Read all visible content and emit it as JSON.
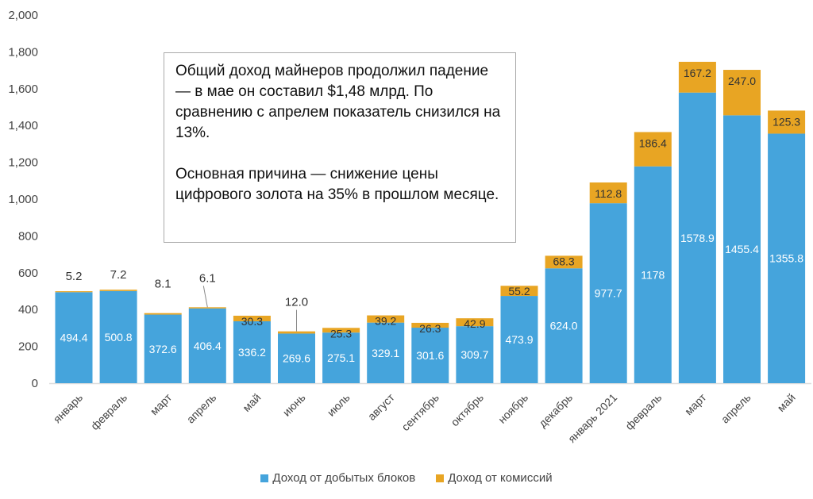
{
  "chart_data": {
    "type": "bar",
    "stacked": true,
    "categories": [
      "январь",
      "февраль",
      "март",
      "апрель",
      "май",
      "июнь",
      "июль",
      "август",
      "сентябрь",
      "октябрь",
      "ноябрь",
      "декабрь",
      "январь 2021",
      "февраль",
      "март",
      "апрель",
      "май"
    ],
    "series": [
      {
        "name": "Доход от добытых блоков",
        "color": "#45a4dc",
        "values": [
          494.4,
          500.8,
          372.6,
          406.4,
          336.2,
          269.6,
          275.1,
          329.1,
          301.6,
          309.7,
          473.9,
          624.0,
          977.7,
          1178,
          1578.9,
          1455.4,
          1355.8
        ],
        "labels": [
          "494.4",
          "500.8",
          "372.6",
          "406.4",
          "336.2",
          "269.6",
          "275.1",
          "329.1",
          "301.6",
          "309.7",
          "473.9",
          "624.0",
          "977.7",
          "1178",
          "1578.9",
          "1455.4",
          "1355.8"
        ]
      },
      {
        "name": "Доход от комиссий",
        "color": "#e8a523",
        "values": [
          5.2,
          7.2,
          8.1,
          6.1,
          30.3,
          12.0,
          25.3,
          39.2,
          26.3,
          42.9,
          55.2,
          68.3,
          112.8,
          186.4,
          167.2,
          247.0,
          125.3
        ],
        "labels": [
          "5.2",
          "7.2",
          "8.1",
          "6.1",
          "30.3",
          "12.0",
          "25.3",
          "39.2",
          "26.3",
          "42.9",
          "55.2",
          "68.3",
          "112.8",
          "186.4",
          "167.2",
          "247.0",
          "125.3"
        ]
      }
    ],
    "ylim": [
      0,
      2000
    ],
    "yticks": [
      "0",
      "200",
      "400",
      "600",
      "800",
      "1,000",
      "1,200",
      "1,400",
      "1,600",
      "1,800",
      "2,000"
    ],
    "grid": false,
    "legend": "bottom"
  },
  "annotation": {
    "p1": "Общий доход майнеров продолжил падение — в мае он составил $1,48 млрд. По сравнению с апрелем показатель снизился на 13%.",
    "p2": "Основная причина — снижение цены цифрового золота на 35% в прошлом месяце."
  }
}
